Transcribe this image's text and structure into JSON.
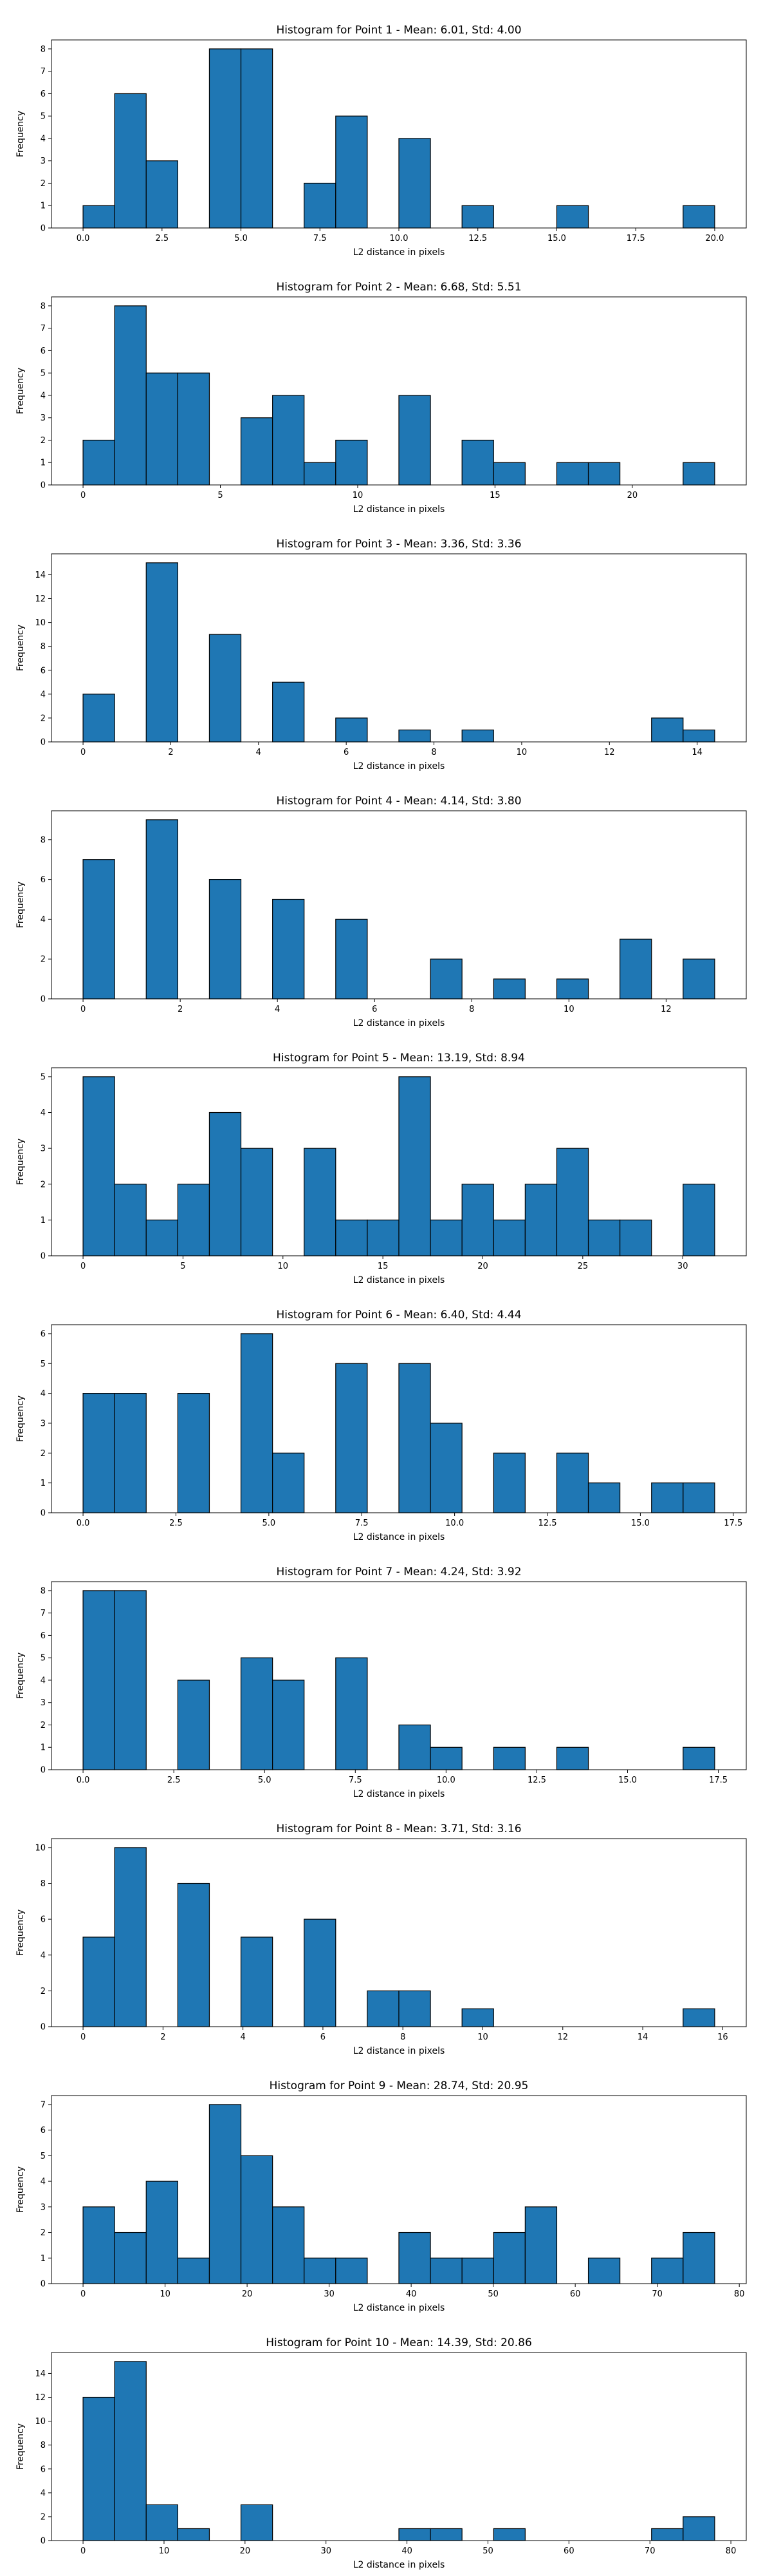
{
  "figure": {
    "bar_color": "#1f77b4",
    "edge_color": "#000000"
  },
  "chart_data": [
    {
      "type": "bar",
      "title": "Histogram for Point 1 - Mean: 6.01, Std: 4.00",
      "xlabel": "L2 distance in pixels",
      "ylabel": "Frequency",
      "xlim": [
        -1.0,
        21.0
      ],
      "ylim": [
        0,
        8.4
      ],
      "xticks": [
        0.0,
        2.5,
        5.0,
        7.5,
        10.0,
        12.5,
        15.0,
        17.5,
        20.0
      ],
      "xtick_labels": [
        "0.0",
        "2.5",
        "5.0",
        "7.5",
        "10.0",
        "12.5",
        "15.0",
        "17.5",
        "20.0"
      ],
      "yticks": [
        0,
        1,
        2,
        3,
        4,
        5,
        6,
        7,
        8
      ],
      "ytick_labels": [
        "0",
        "1",
        "2",
        "3",
        "4",
        "5",
        "6",
        "7",
        "8"
      ],
      "bin_start": 0.0,
      "bin_width": 1.0,
      "values": [
        1,
        6,
        3,
        0,
        8,
        8,
        0,
        2,
        5,
        0,
        4,
        0,
        1,
        0,
        0,
        1,
        0,
        0,
        0,
        1
      ]
    },
    {
      "type": "bar",
      "title": "Histogram for Point 2 - Mean: 6.68, Std: 5.51",
      "xlabel": "L2 distance in pixels",
      "ylabel": "Frequency",
      "xlim": [
        -1.15,
        24.15
      ],
      "ylim": [
        0,
        8.4
      ],
      "xticks": [
        0,
        5,
        10,
        15,
        20
      ],
      "xtick_labels": [
        "0",
        "5",
        "10",
        "15",
        "20"
      ],
      "yticks": [
        0,
        1,
        2,
        3,
        4,
        5,
        6,
        7,
        8
      ],
      "ytick_labels": [
        "0",
        "1",
        "2",
        "3",
        "4",
        "5",
        "6",
        "7",
        "8"
      ],
      "bin_start": 0.0,
      "bin_width": 1.15,
      "values": [
        2,
        8,
        5,
        5,
        0,
        3,
        4,
        1,
        2,
        0,
        4,
        0,
        2,
        1,
        0,
        1,
        1,
        0,
        0,
        1
      ]
    },
    {
      "type": "bar",
      "title": "Histogram for Point 3 - Mean: 3.36, Std: 3.36",
      "xlabel": "L2 distance in pixels",
      "ylabel": "Frequency",
      "xlim": [
        -0.72,
        15.12
      ],
      "ylim": [
        0,
        15.75
      ],
      "xticks": [
        0,
        2,
        4,
        6,
        8,
        10,
        12,
        14
      ],
      "xtick_labels": [
        "0",
        "2",
        "4",
        "6",
        "8",
        "10",
        "12",
        "14"
      ],
      "yticks": [
        0,
        2,
        4,
        6,
        8,
        10,
        12,
        14
      ],
      "ytick_labels": [
        "0",
        "2",
        "4",
        "6",
        "8",
        "10",
        "12",
        "14"
      ],
      "bin_start": 0.0,
      "bin_width": 0.72,
      "values": [
        4,
        0,
        15,
        0,
        9,
        0,
        5,
        0,
        2,
        0,
        1,
        0,
        1,
        0,
        0,
        0,
        0,
        0,
        2,
        1
      ]
    },
    {
      "type": "bar",
      "title": "Histogram for Point 4 - Mean: 4.14, Std: 3.80",
      "xlabel": "L2 distance in pixels",
      "ylabel": "Frequency",
      "xlim": [
        -0.65,
        13.65
      ],
      "ylim": [
        0,
        9.45
      ],
      "xticks": [
        0,
        2,
        4,
        6,
        8,
        10,
        12
      ],
      "xtick_labels": [
        "0",
        "2",
        "4",
        "6",
        "8",
        "10",
        "12"
      ],
      "yticks": [
        0,
        2,
        4,
        6,
        8
      ],
      "ytick_labels": [
        "0",
        "2",
        "4",
        "6",
        "8"
      ],
      "bin_start": 0.0,
      "bin_width": 0.65,
      "values": [
        7,
        0,
        9,
        0,
        6,
        0,
        5,
        0,
        4,
        0,
        0,
        2,
        0,
        1,
        0,
        1,
        0,
        3,
        0,
        2
      ]
    },
    {
      "type": "bar",
      "title": "Histogram for Point 5 - Mean: 13.19, Std: 8.94",
      "xlabel": "L2 distance in pixels",
      "ylabel": "Frequency",
      "xlim": [
        -1.58,
        33.18
      ],
      "ylim": [
        0,
        5.25
      ],
      "xticks": [
        0,
        5,
        10,
        15,
        20,
        25,
        30
      ],
      "xtick_labels": [
        "0",
        "5",
        "10",
        "15",
        "20",
        "25",
        "30"
      ],
      "yticks": [
        0,
        1,
        2,
        3,
        4,
        5
      ],
      "ytick_labels": [
        "0",
        "1",
        "2",
        "3",
        "4",
        "5"
      ],
      "bin_start": 0.0,
      "bin_width": 1.58,
      "values": [
        5,
        2,
        1,
        2,
        4,
        3,
        0,
        3,
        1,
        1,
        5,
        1,
        2,
        1,
        2,
        3,
        1,
        1,
        0,
        2
      ]
    },
    {
      "type": "bar",
      "title": "Histogram for Point 6 - Mean: 6.40, Std: 4.44",
      "xlabel": "L2 distance in pixels",
      "ylabel": "Frequency",
      "xlim": [
        -0.85,
        17.85
      ],
      "ylim": [
        0,
        6.3
      ],
      "xticks": [
        0.0,
        2.5,
        5.0,
        7.5,
        10.0,
        12.5,
        15.0,
        17.5
      ],
      "xtick_labels": [
        "0.0",
        "2.5",
        "5.0",
        "7.5",
        "10.0",
        "12.5",
        "15.0",
        "17.5"
      ],
      "yticks": [
        0,
        1,
        2,
        3,
        4,
        5,
        6
      ],
      "ytick_labels": [
        "0",
        "1",
        "2",
        "3",
        "4",
        "5",
        "6"
      ],
      "bin_start": 0.0,
      "bin_width": 0.85,
      "values": [
        4,
        4,
        0,
        4,
        0,
        6,
        2,
        0,
        5,
        0,
        5,
        3,
        0,
        2,
        0,
        2,
        1,
        0,
        1,
        1
      ]
    },
    {
      "type": "bar",
      "title": "Histogram for Point 7 - Mean: 4.24, Std: 3.92",
      "xlabel": "L2 distance in pixels",
      "ylabel": "Frequency",
      "xlim": [
        -0.87,
        18.27
      ],
      "ylim": [
        0,
        8.4
      ],
      "xticks": [
        0.0,
        2.5,
        5.0,
        7.5,
        10.0,
        12.5,
        15.0,
        17.5
      ],
      "xtick_labels": [
        "0.0",
        "2.5",
        "5.0",
        "7.5",
        "10.0",
        "12.5",
        "15.0",
        "17.5"
      ],
      "yticks": [
        0,
        1,
        2,
        3,
        4,
        5,
        6,
        7,
        8
      ],
      "ytick_labels": [
        "0",
        "1",
        "2",
        "3",
        "4",
        "5",
        "6",
        "7",
        "8"
      ],
      "bin_start": 0.0,
      "bin_width": 0.87,
      "values": [
        8,
        8,
        0,
        4,
        0,
        5,
        4,
        0,
        5,
        0,
        2,
        1,
        0,
        1,
        0,
        1,
        0,
        0,
        0,
        1
      ]
    },
    {
      "type": "bar",
      "title": "Histogram for Point 8 - Mean: 3.71, Std: 3.16",
      "xlabel": "L2 distance in pixels",
      "ylabel": "Frequency",
      "xlim": [
        -0.79,
        16.59
      ],
      "ylim": [
        0,
        10.5
      ],
      "xticks": [
        0,
        2,
        4,
        6,
        8,
        10,
        12,
        14,
        16
      ],
      "xtick_labels": [
        "0",
        "2",
        "4",
        "6",
        "8",
        "10",
        "12",
        "14",
        "16"
      ],
      "yticks": [
        0,
        2,
        4,
        6,
        8,
        10
      ],
      "ytick_labels": [
        "0",
        "2",
        "4",
        "6",
        "8",
        "10"
      ],
      "bin_start": 0.0,
      "bin_width": 0.79,
      "values": [
        5,
        10,
        0,
        8,
        0,
        5,
        0,
        6,
        0,
        2,
        2,
        0,
        1,
        0,
        0,
        0,
        0,
        0,
        0,
        1
      ]
    },
    {
      "type": "bar",
      "title": "Histogram for Point 9 - Mean: 28.74, Std: 20.95",
      "xlabel": "L2 distance in pixels",
      "ylabel": "Frequency",
      "xlim": [
        -3.85,
        80.85
      ],
      "ylim": [
        0,
        7.35
      ],
      "xticks": [
        0,
        10,
        20,
        30,
        40,
        50,
        60,
        70,
        80
      ],
      "xtick_labels": [
        "0",
        "10",
        "20",
        "30",
        "40",
        "50",
        "60",
        "70",
        "80"
      ],
      "yticks": [
        0,
        1,
        2,
        3,
        4,
        5,
        6,
        7
      ],
      "ytick_labels": [
        "0",
        "1",
        "2",
        "3",
        "4",
        "5",
        "6",
        "7"
      ],
      "bin_start": 0.0,
      "bin_width": 3.85,
      "values": [
        3,
        2,
        4,
        1,
        7,
        5,
        3,
        1,
        1,
        0,
        2,
        1,
        1,
        2,
        3,
        0,
        1,
        0,
        1,
        2
      ]
    },
    {
      "type": "bar",
      "title": "Histogram for Point 10 - Mean: 14.39, Std: 20.86",
      "xlabel": "L2 distance in pixels",
      "ylabel": "Frequency",
      "xlim": [
        -3.9,
        81.9
      ],
      "ylim": [
        0,
        15.75
      ],
      "xticks": [
        0,
        10,
        20,
        30,
        40,
        50,
        60,
        70,
        80
      ],
      "xtick_labels": [
        "0",
        "10",
        "20",
        "30",
        "40",
        "50",
        "60",
        "70",
        "80"
      ],
      "yticks": [
        0,
        2,
        4,
        6,
        8,
        10,
        12,
        14
      ],
      "ytick_labels": [
        "0",
        "2",
        "4",
        "6",
        "8",
        "10",
        "12",
        "14"
      ],
      "bin_start": 0.0,
      "bin_width": 3.9,
      "values": [
        12,
        15,
        3,
        1,
        0,
        3,
        0,
        0,
        0,
        0,
        1,
        1,
        0,
        1,
        0,
        0,
        0,
        0,
        1,
        2
      ]
    }
  ]
}
